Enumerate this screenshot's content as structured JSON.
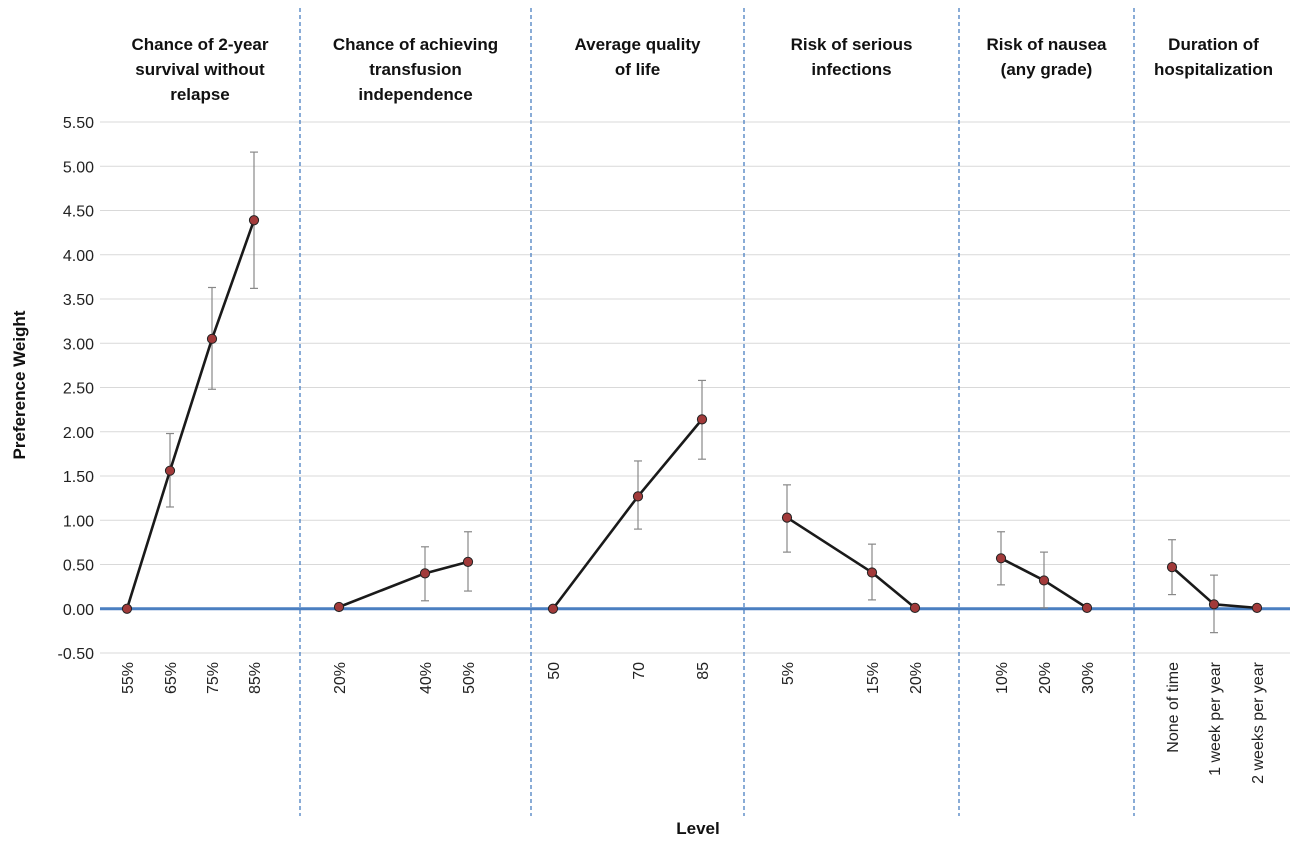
{
  "chart_data": {
    "type": "line",
    "xlabel": "Level",
    "ylabel": "Preference Weight",
    "ylim": [
      -0.5,
      5.5
    ],
    "yticks": [
      "5.50",
      "5.00",
      "4.50",
      "4.00",
      "3.50",
      "3.00",
      "2.50",
      "2.00",
      "1.50",
      "1.00",
      "0.50",
      "0.00",
      "-0.50"
    ],
    "grid": true,
    "colors": {
      "line": "#1a1a1a",
      "marker": "#a23a3a",
      "zero_line": "#4a7fc1",
      "divider": "#4a7fc1",
      "grid": "#d9d9d9",
      "error_bar": "#888888"
    },
    "panels": [
      {
        "title": [
          "Chance of 2-year",
          "survival without",
          "relapse"
        ],
        "levels": [
          "55%",
          "65%",
          "75%",
          "85%"
        ],
        "x": [
          55,
          65,
          75,
          85
        ],
        "values": [
          0.0,
          1.56,
          3.05,
          4.39
        ],
        "ci_low": [
          0.0,
          1.15,
          2.48,
          3.62
        ],
        "ci_high": [
          0.0,
          1.98,
          3.63,
          5.16
        ]
      },
      {
        "title": [
          "Chance of achieving",
          "transfusion",
          "independence"
        ],
        "levels": [
          "20%",
          "40%",
          "50%"
        ],
        "x": [
          20,
          40,
          50
        ],
        "values": [
          0.02,
          0.4,
          0.53
        ],
        "ci_low": [
          0.02,
          0.09,
          0.2
        ],
        "ci_high": [
          0.02,
          0.7,
          0.87
        ]
      },
      {
        "title": [
          "Average quality",
          "of life"
        ],
        "levels": [
          "50",
          "70",
          "85"
        ],
        "x": [
          50,
          70,
          85
        ],
        "values": [
          0.0,
          1.27,
          2.14
        ],
        "ci_low": [
          0.0,
          0.9,
          1.69
        ],
        "ci_high": [
          0.0,
          1.67,
          2.58
        ]
      },
      {
        "title": [
          "Risk of serious",
          "infections"
        ],
        "levels": [
          "5%",
          "15%",
          "20%"
        ],
        "x": [
          5,
          15,
          20
        ],
        "values": [
          1.03,
          0.41,
          0.01
        ],
        "ci_low": [
          0.64,
          0.1,
          0.01
        ],
        "ci_high": [
          1.4,
          0.73,
          0.01
        ]
      },
      {
        "title": [
          "Risk of nausea",
          "(any grade)"
        ],
        "levels": [
          "10%",
          "20%",
          "30%"
        ],
        "x": [
          10,
          20,
          30
        ],
        "values": [
          0.57,
          0.32,
          0.01
        ],
        "ci_low": [
          0.27,
          0.01,
          0.01
        ],
        "ci_high": [
          0.87,
          0.64,
          0.01
        ]
      },
      {
        "title": [
          "Duration of",
          "hospitalization"
        ],
        "levels": [
          "None of time",
          "1 week per year",
          "2 weeks per year"
        ],
        "x": [
          0,
          1,
          2
        ],
        "values": [
          0.47,
          0.05,
          0.01
        ],
        "ci_low": [
          0.16,
          -0.27,
          0.01
        ],
        "ci_high": [
          0.78,
          0.38,
          0.01
        ]
      }
    ]
  }
}
